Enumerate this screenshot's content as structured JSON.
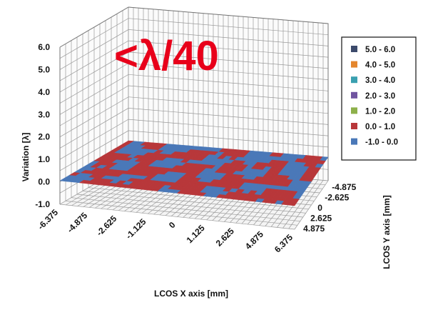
{
  "chart_data": {
    "type": "surface",
    "annotation": "<λ/40",
    "zlabel": "Variation [λ]",
    "xlabel": "LCOS X axis [mm]",
    "ylabel": "LCOS Y axis [mm]",
    "z_ticks": [
      "6.0",
      "5.0",
      "4.0",
      "3.0",
      "2.0",
      "1.0",
      "0.0",
      "-1.0"
    ],
    "zlim": [
      -1.0,
      6.0
    ],
    "x_ticks": [
      "-6.375",
      "-4.875",
      "-2.625",
      "-1.125",
      "0",
      "1.125",
      "2.625",
      "4.875",
      "6.375"
    ],
    "y_ticks": [
      "-4.875",
      "-2.625",
      "0",
      "2.625",
      "4.875"
    ],
    "grid": true,
    "legend_position": "right",
    "legend": [
      {
        "label": "5.0 - 6.0",
        "color": "#3c4a6b"
      },
      {
        "label": "4.0 - 5.0",
        "color": "#e4862d"
      },
      {
        "label": "3.0 - 4.0",
        "color": "#3aa0b0"
      },
      {
        "label": "2.0 - 3.0",
        "color": "#7055a0"
      },
      {
        "label": "1.0 - 2.0",
        "color": "#8db04a"
      },
      {
        "label": "0.0 - 1.0",
        "color": "#b8373a"
      },
      {
        "label": "-1.0 - 0.0",
        "color": "#4a78b8"
      }
    ],
    "surface_value_range": [
      -1.0,
      1.0
    ]
  }
}
